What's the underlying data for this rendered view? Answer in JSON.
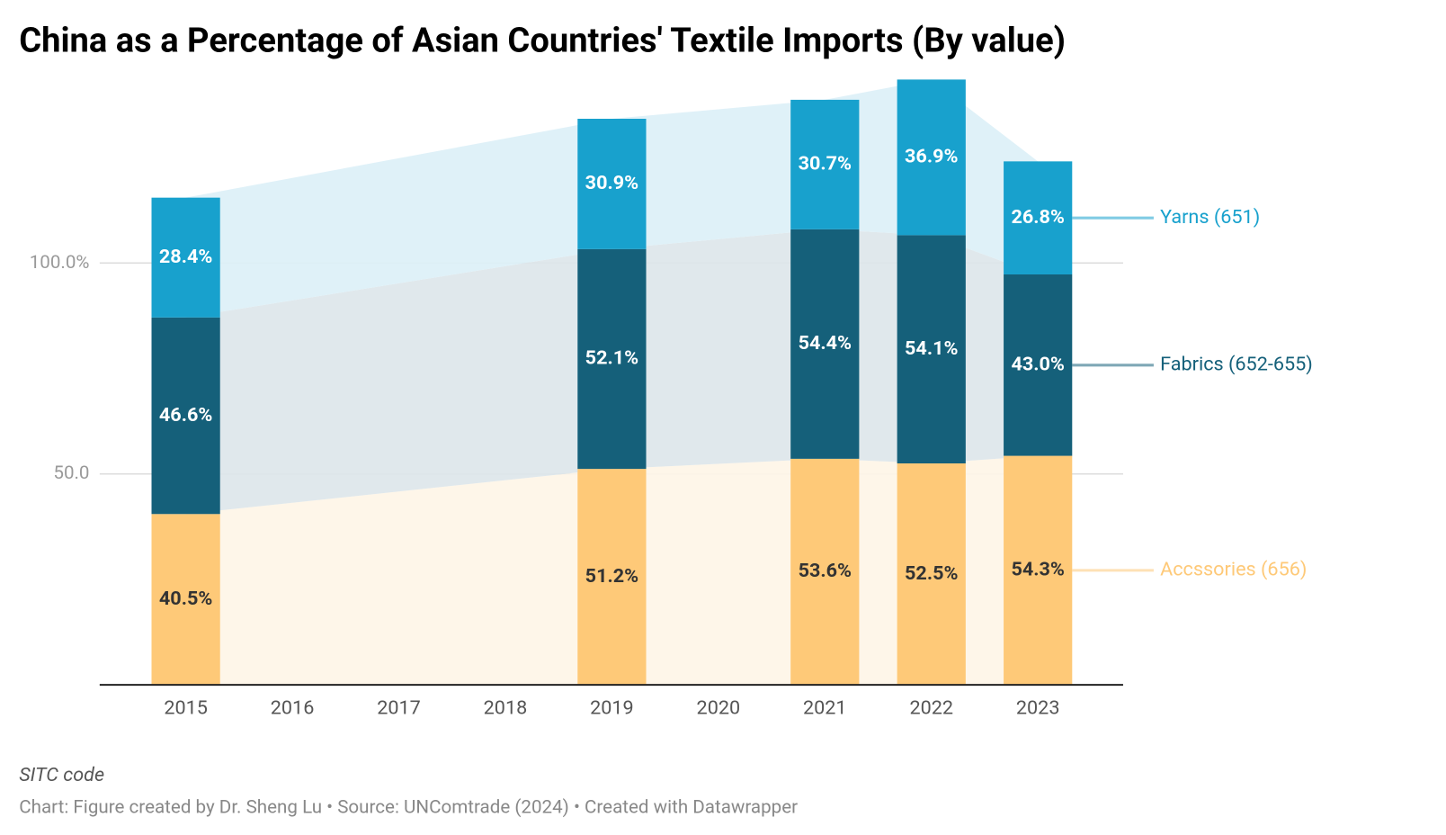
{
  "chart_data": {
    "type": "bar",
    "stacked": true,
    "title": "China as a Percentage of Asian Countries' Textile Imports (By value)",
    "categories": [
      "2015",
      "2016",
      "2017",
      "2018",
      "2019",
      "2020",
      "2021",
      "2022",
      "2023"
    ],
    "series": [
      {
        "name": "Accssories (656)",
        "color": "#fec978",
        "area_color": "#fef5e7",
        "label_color": "#333333",
        "values": [
          40.5,
          null,
          null,
          null,
          51.2,
          null,
          53.6,
          52.5,
          54.3
        ],
        "value_labels": [
          "40.5%",
          null,
          null,
          null,
          "51.2%",
          null,
          "53.6%",
          "52.5%",
          "54.3%"
        ]
      },
      {
        "name": "Fabrics (652-655)",
        "color": "#15607a",
        "area_color": "#dde6ea",
        "label_color": "#ffffff",
        "values": [
          46.6,
          null,
          null,
          null,
          52.1,
          null,
          54.4,
          54.1,
          43.0
        ],
        "value_labels": [
          "46.6%",
          null,
          null,
          null,
          "52.1%",
          null,
          "54.4%",
          "54.1%",
          "43.0%"
        ]
      },
      {
        "name": "Yarns (651)",
        "color": "#18a1cd",
        "area_color": "#dcf0f7",
        "label_color": "#ffffff",
        "values": [
          28.4,
          null,
          null,
          null,
          30.9,
          null,
          30.7,
          36.9,
          26.8
        ],
        "value_labels": [
          "28.4%",
          null,
          null,
          null,
          "30.9%",
          null,
          "30.7%",
          "36.9%",
          "26.8%"
        ]
      }
    ],
    "ylim": [
      0,
      145
    ],
    "yticks": [
      {
        "value": 50,
        "label": "50.0"
      },
      {
        "value": 100,
        "label": "100.0%"
      }
    ],
    "grid": true,
    "legend": "right",
    "notes": "SITC code",
    "source": "Chart: Figure created by Dr. Sheng Lu • Source: UNComtrade (2024) • Created with Datawrapper"
  }
}
